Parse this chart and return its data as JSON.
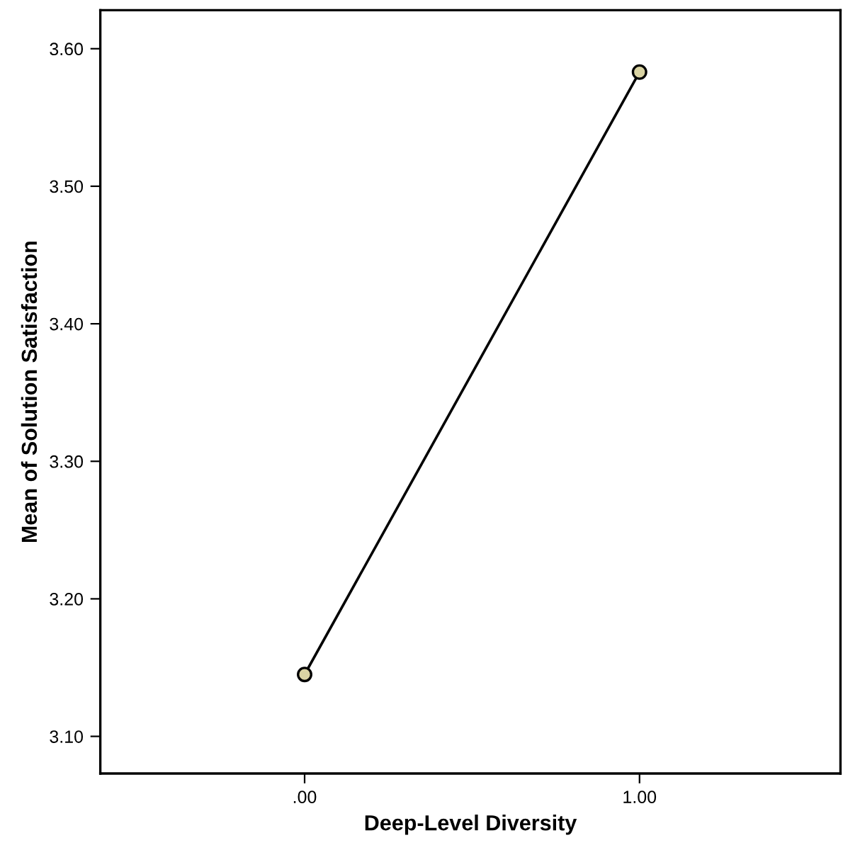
{
  "chart_data": {
    "type": "line",
    "xlabel": "Deep-Level Diversity",
    "ylabel": "Mean of Solution Satisfaction",
    "x": [
      0,
      1
    ],
    "series": [
      {
        "color": "#000000",
        "colors": [
          "#d9d3a3",
          "#d9d3a3"
        ],
        "values": [
          3.145,
          3.583
        ]
      }
    ],
    "marker": "circle",
    "line_style": "solid",
    "xlim": [
      -0.61,
      1.6
    ],
    "xticks": [
      {
        "value": 0,
        "label": ".00"
      },
      {
        "value": 1,
        "label": "1.00"
      }
    ],
    "ylim": [
      3.073,
      3.628
    ],
    "yticks": [
      {
        "value": 3.1,
        "label": "3.10"
      },
      {
        "value": 3.2,
        "label": "3.20"
      },
      {
        "value": 3.3,
        "label": "3.30"
      },
      {
        "value": 3.4,
        "label": "3.40"
      },
      {
        "value": 3.5,
        "label": "3.50"
      },
      {
        "value": 3.6,
        "label": "3.60"
      }
    ],
    "grid": false,
    "legend": false
  }
}
